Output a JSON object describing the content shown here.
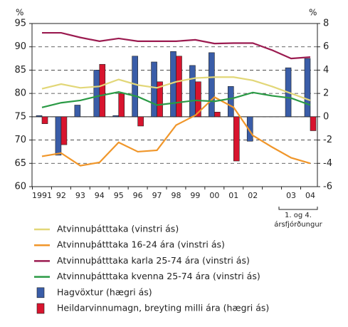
{
  "chart_data": {
    "type": "bar-line",
    "y_label": "%",
    "y2_label": "%",
    "annotation": [
      "1. og 4.",
      "ársfjórðungur"
    ],
    "categories": [
      "1991",
      "92",
      "93",
      "94",
      "95",
      "96",
      "97",
      "98",
      "99",
      "00",
      "01",
      "02",
      null,
      "03",
      "04"
    ],
    "ylim": [
      60,
      95
    ],
    "yticks": [
      60,
      65,
      70,
      75,
      80,
      85,
      90,
      95
    ],
    "y2lim": [
      -6,
      8
    ],
    "y2ticks": [
      -6,
      -4,
      -2,
      0,
      2,
      4,
      6,
      8
    ],
    "grid": true,
    "legend": "bottom",
    "series": [
      {
        "name": "Atvinnuþátttaka (vinstri ás)",
        "kind": "line",
        "color": "#e2d778",
        "values": [
          81,
          82,
          81.2,
          81.5,
          83,
          81.8,
          81.2,
          82.5,
          83.3,
          83.5,
          83.5,
          82.8,
          81.5,
          80,
          78.5
        ]
      },
      {
        "name": "Atvinnuþátttaka 16-24 ára (vinstri ás)",
        "kind": "line",
        "color": "#f0962a",
        "values": [
          66.5,
          67.2,
          64.5,
          65.2,
          69.5,
          67.5,
          67.8,
          73.2,
          75.3,
          79.2,
          77,
          71,
          68.5,
          66.2,
          65
        ]
      },
      {
        "name": "Atvinnuþátttaka karla 25-74 ára (vinstri ás)",
        "kind": "line",
        "color": "#9b1b50",
        "values": [
          93,
          93,
          92,
          91.2,
          91.8,
          91.2,
          91.2,
          91.2,
          91.5,
          90.7,
          90.8,
          90.8,
          89.3,
          87.5,
          87.8
        ]
      },
      {
        "name": "Atvinnuþátttaka kvenna 25-74 ára (vinstri ás)",
        "kind": "line",
        "color": "#2a9a45",
        "values": [
          77,
          78,
          78.5,
          79.5,
          80.3,
          79.3,
          77.5,
          78,
          78.5,
          78.3,
          79,
          80.2,
          79.5,
          79,
          77.5
        ]
      },
      {
        "name": "Hagvöxtur (hægri ás)",
        "kind": "bar",
        "axis": "y2",
        "color": "#3a5da8",
        "values": [
          0.1,
          -3.3,
          1.0,
          4.0,
          0.1,
          5.2,
          4.7,
          5.6,
          4.4,
          5.5,
          2.6,
          -2.1,
          null,
          4.2,
          5.0
        ]
      },
      {
        "name": "Heildarvinnumagn, breyting milli ára (hægri ás)",
        "kind": "bar",
        "axis": "y2",
        "color": "#d8142e",
        "values": [
          -0.6,
          -2.4,
          null,
          4.5,
          2.0,
          -0.8,
          3.0,
          5.2,
          3.0,
          0.4,
          -3.8,
          null,
          null,
          null,
          -1.2
        ]
      }
    ]
  }
}
